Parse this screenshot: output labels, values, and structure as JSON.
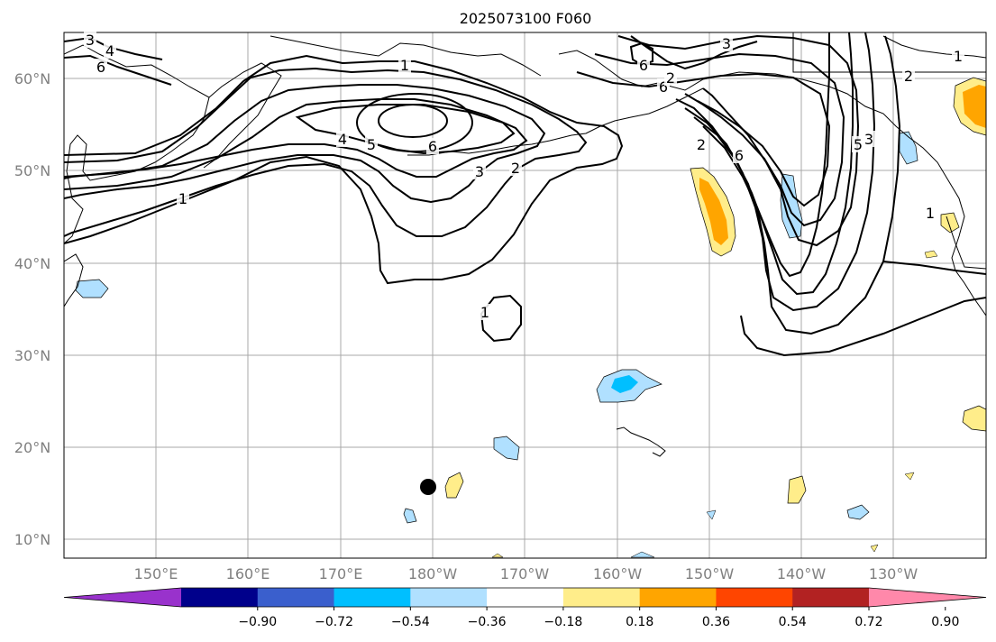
{
  "title": "2025073100 F060",
  "lat_labels": [
    "60°N",
    "50°N",
    "40°N",
    "30°N",
    "20°N",
    "10°N"
  ],
  "lon_labels": [
    "150°E",
    "160°E",
    "170°E",
    "180°W",
    "170°W",
    "160°W",
    "150°W",
    "140°W",
    "130°W"
  ],
  "colorbar": {
    "colors": [
      "#9932cc",
      "#00008b",
      "#3a5fcd",
      "#00bfff",
      "#b0e0ff",
      "#ffffff",
      "#ffed8a",
      "#ffa500",
      "#ff4500",
      "#b22222",
      "#ff88aa"
    ],
    "tick_labels": [
      "−0.90",
      "−0.72",
      "−0.54",
      "−0.36",
      "−0.18",
      "0.18",
      "0.36",
      "0.54",
      "0.72",
      "0.90"
    ]
  },
  "contour_labels": [
    "3",
    "4",
    "6",
    "1",
    "6",
    "3",
    "6",
    "4",
    "5",
    "6",
    "3",
    "2",
    "1",
    "2",
    "6",
    "1",
    "5",
    "2",
    "3",
    "1",
    "1",
    "2"
  ],
  "marker": "storm-center-dot"
}
